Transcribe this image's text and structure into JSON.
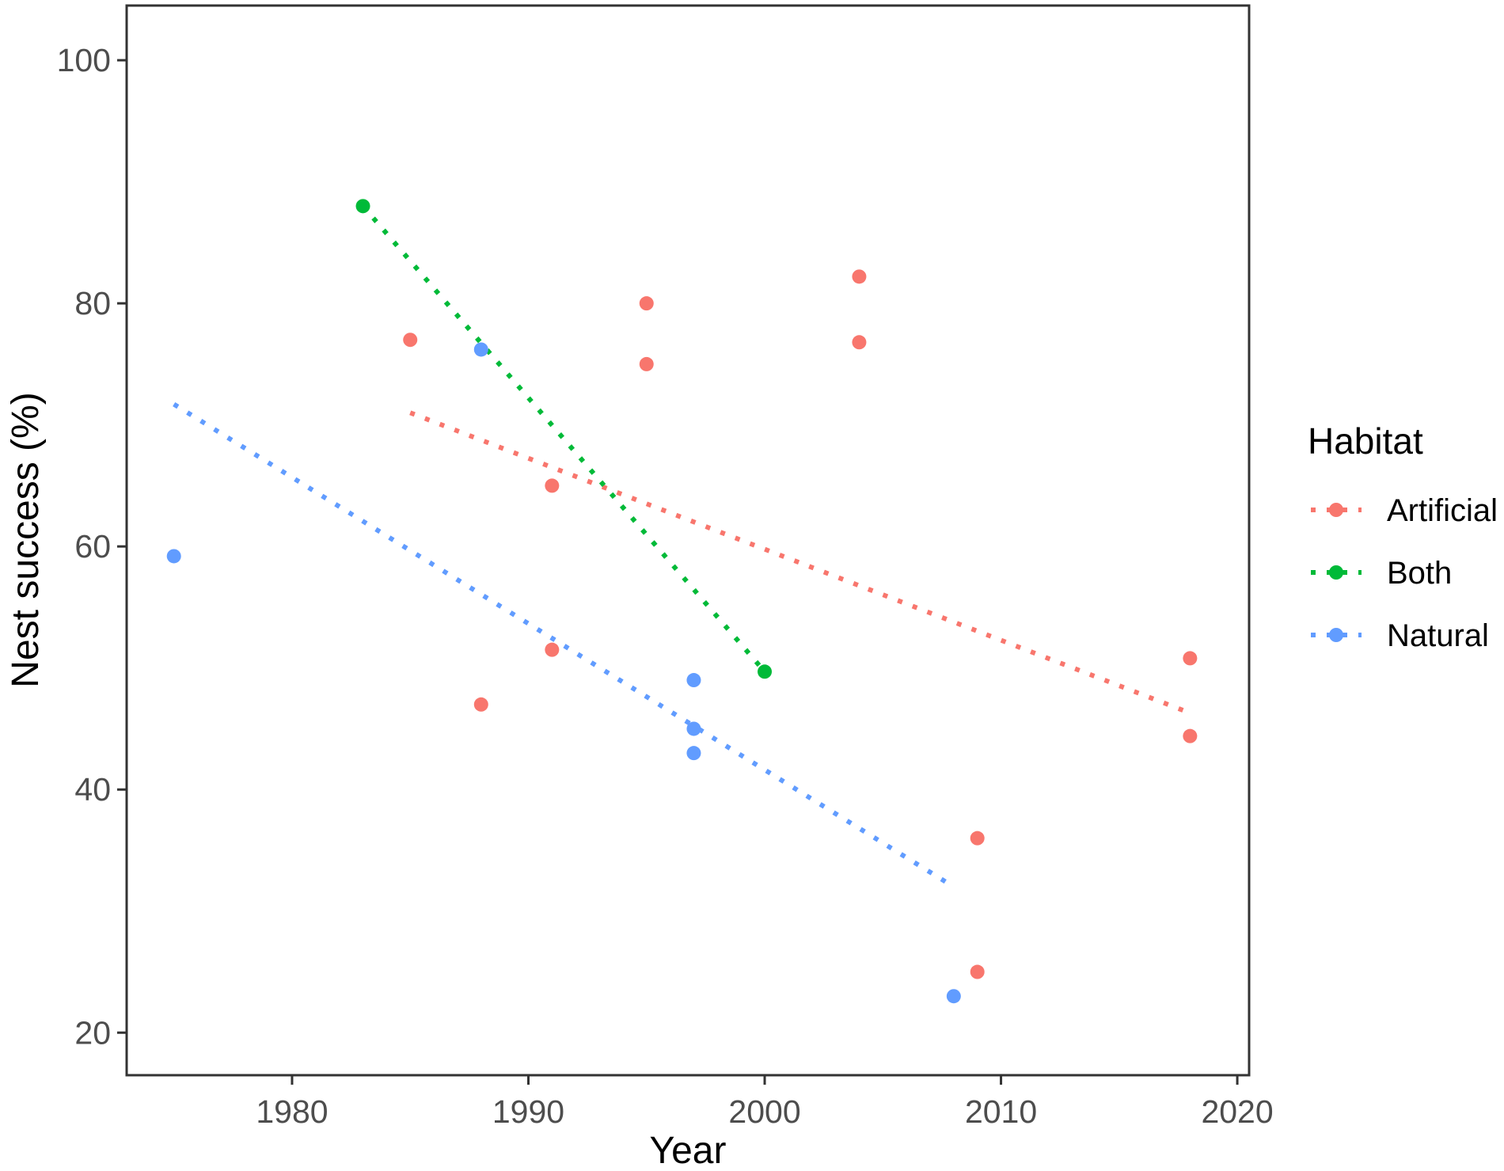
{
  "chart_data": {
    "type": "scatter",
    "title": "",
    "xlabel": "Year",
    "ylabel": "Nest success (%)",
    "xlim": [
      1973,
      2020.5
    ],
    "ylim": [
      16.5,
      104.5
    ],
    "x_ticks": [
      1980,
      1990,
      2000,
      2010,
      2020
    ],
    "y_ticks": [
      20,
      40,
      60,
      80,
      100
    ],
    "grid": false,
    "legend": {
      "title": "Habitat",
      "position": "right"
    },
    "series": [
      {
        "name": "Artificial",
        "color": "#F8766D",
        "points": [
          {
            "x": 1985,
            "y": 77
          },
          {
            "x": 1988,
            "y": 47
          },
          {
            "x": 1991,
            "y": 65
          },
          {
            "x": 1991,
            "y": 51.5
          },
          {
            "x": 1995,
            "y": 80
          },
          {
            "x": 1995,
            "y": 75
          },
          {
            "x": 2004,
            "y": 82.2
          },
          {
            "x": 2004,
            "y": 76.8
          },
          {
            "x": 2009,
            "y": 36
          },
          {
            "x": 2009,
            "y": 25
          },
          {
            "x": 2018,
            "y": 50.8
          },
          {
            "x": 2018,
            "y": 44.4
          }
        ],
        "trend": {
          "x": [
            1985,
            2018
          ],
          "y": [
            71,
            46.3
          ]
        }
      },
      {
        "name": "Both",
        "color": "#00BA38",
        "points": [
          {
            "x": 1983,
            "y": 88
          },
          {
            "x": 2000,
            "y": 49.7
          }
        ],
        "trend": {
          "x": [
            1983,
            2000
          ],
          "y": [
            88,
            49.7
          ]
        }
      },
      {
        "name": "Natural",
        "color": "#619CFF",
        "points": [
          {
            "x": 1975,
            "y": 59.2
          },
          {
            "x": 1988,
            "y": 76.2
          },
          {
            "x": 1997,
            "y": 49
          },
          {
            "x": 1997,
            "y": 45
          },
          {
            "x": 1997,
            "y": 43
          },
          {
            "x": 2008,
            "y": 23
          }
        ],
        "trend": {
          "x": [
            1975,
            2008
          ],
          "y": [
            71.7,
            32
          ]
        }
      }
    ]
  }
}
